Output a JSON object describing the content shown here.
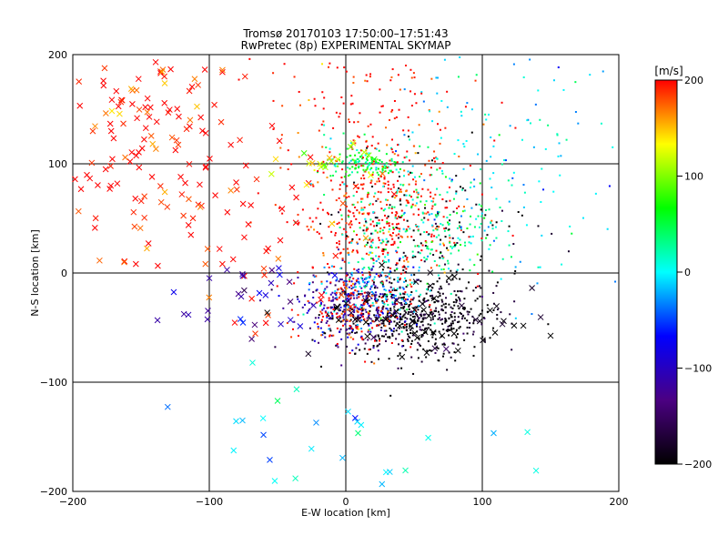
{
  "chart_data": {
    "type": "scatter",
    "title": "Tromsø 20170103 17:50:00–17:51:43",
    "subtitle": "RwPretec (8p) EXPERIMENTAL SKYMAP",
    "xlabel": "E-W location [km]",
    "ylabel": "N-S location [km]",
    "xlim": [
      -200,
      200
    ],
    "ylim": [
      -200,
      200
    ],
    "x_ticks": [
      -200,
      -100,
      0,
      100,
      200
    ],
    "y_ticks": [
      -200,
      -100,
      0,
      100,
      200
    ],
    "grid": true,
    "marker_types": [
      "x",
      "dot"
    ],
    "colorbar": {
      "label": "[m/s]",
      "range": [
        -200,
        200
      ],
      "ticks": [
        200,
        100,
        0,
        -100,
        -200
      ],
      "colormap": [
        "#000000",
        "#4b0082",
        "#0000ff",
        "#00ffff",
        "#00ff00",
        "#ffff00",
        "#ff0000"
      ]
    },
    "clusters": [
      {
        "center": [
          50,
          -40
        ],
        "spread": [
          30,
          18
        ],
        "count": 520,
        "velocity": -200,
        "marker": "dot"
      },
      {
        "center": [
          5,
          -28
        ],
        "spread": [
          18,
          18
        ],
        "count": 300,
        "velocity": -110,
        "marker": "dot"
      },
      {
        "center": [
          10,
          -35
        ],
        "spread": [
          20,
          18
        ],
        "count": 160,
        "velocity": 200,
        "marker": "dot"
      },
      {
        "center": [
          20,
          -15
        ],
        "spread": [
          20,
          15
        ],
        "count": 120,
        "velocity": -20,
        "marker": "dot"
      },
      {
        "center": [
          15,
          100
        ],
        "spread": [
          14,
          7
        ],
        "count": 120,
        "velocity": 50,
        "marker": "dot"
      },
      {
        "center": [
          25,
          50
        ],
        "spread": [
          30,
          30
        ],
        "count": 380,
        "velocity": 200,
        "marker": "dot"
      },
      {
        "center": [
          55,
          40
        ],
        "spread": [
          30,
          25
        ],
        "count": 220,
        "velocity": 30,
        "marker": "dot"
      },
      {
        "center": [
          60,
          20
        ],
        "spread": [
          40,
          40
        ],
        "count": 140,
        "velocity": -200,
        "marker": "dot"
      },
      {
        "center": [
          100,
          100
        ],
        "spread": [
          50,
          60
        ],
        "count": 200,
        "velocity": 0,
        "marker": "dot"
      },
      {
        "center": [
          20,
          140
        ],
        "spread": [
          40,
          35
        ],
        "count": 150,
        "velocity": 200,
        "marker": "dot"
      },
      {
        "center": [
          -150,
          120
        ],
        "spread": [
          35,
          50
        ],
        "count": 140,
        "velocity": 200,
        "marker": "x"
      },
      {
        "center": [
          -60,
          50
        ],
        "spread": [
          40,
          60
        ],
        "count": 60,
        "velocity": 200,
        "marker": "x"
      },
      {
        "center": [
          -70,
          -30
        ],
        "spread": [
          25,
          20
        ],
        "count": 30,
        "velocity": -100,
        "marker": "x"
      },
      {
        "center": [
          20,
          -150
        ],
        "spread": [
          60,
          40
        ],
        "count": 30,
        "velocity": -10,
        "marker": "x"
      },
      {
        "center": [
          60,
          -40
        ],
        "spread": [
          40,
          20
        ],
        "count": 60,
        "velocity": -200,
        "marker": "x"
      },
      {
        "center": [
          -20,
          100
        ],
        "spread": [
          30,
          8
        ],
        "count": 20,
        "velocity": 130,
        "marker": "x"
      }
    ]
  }
}
